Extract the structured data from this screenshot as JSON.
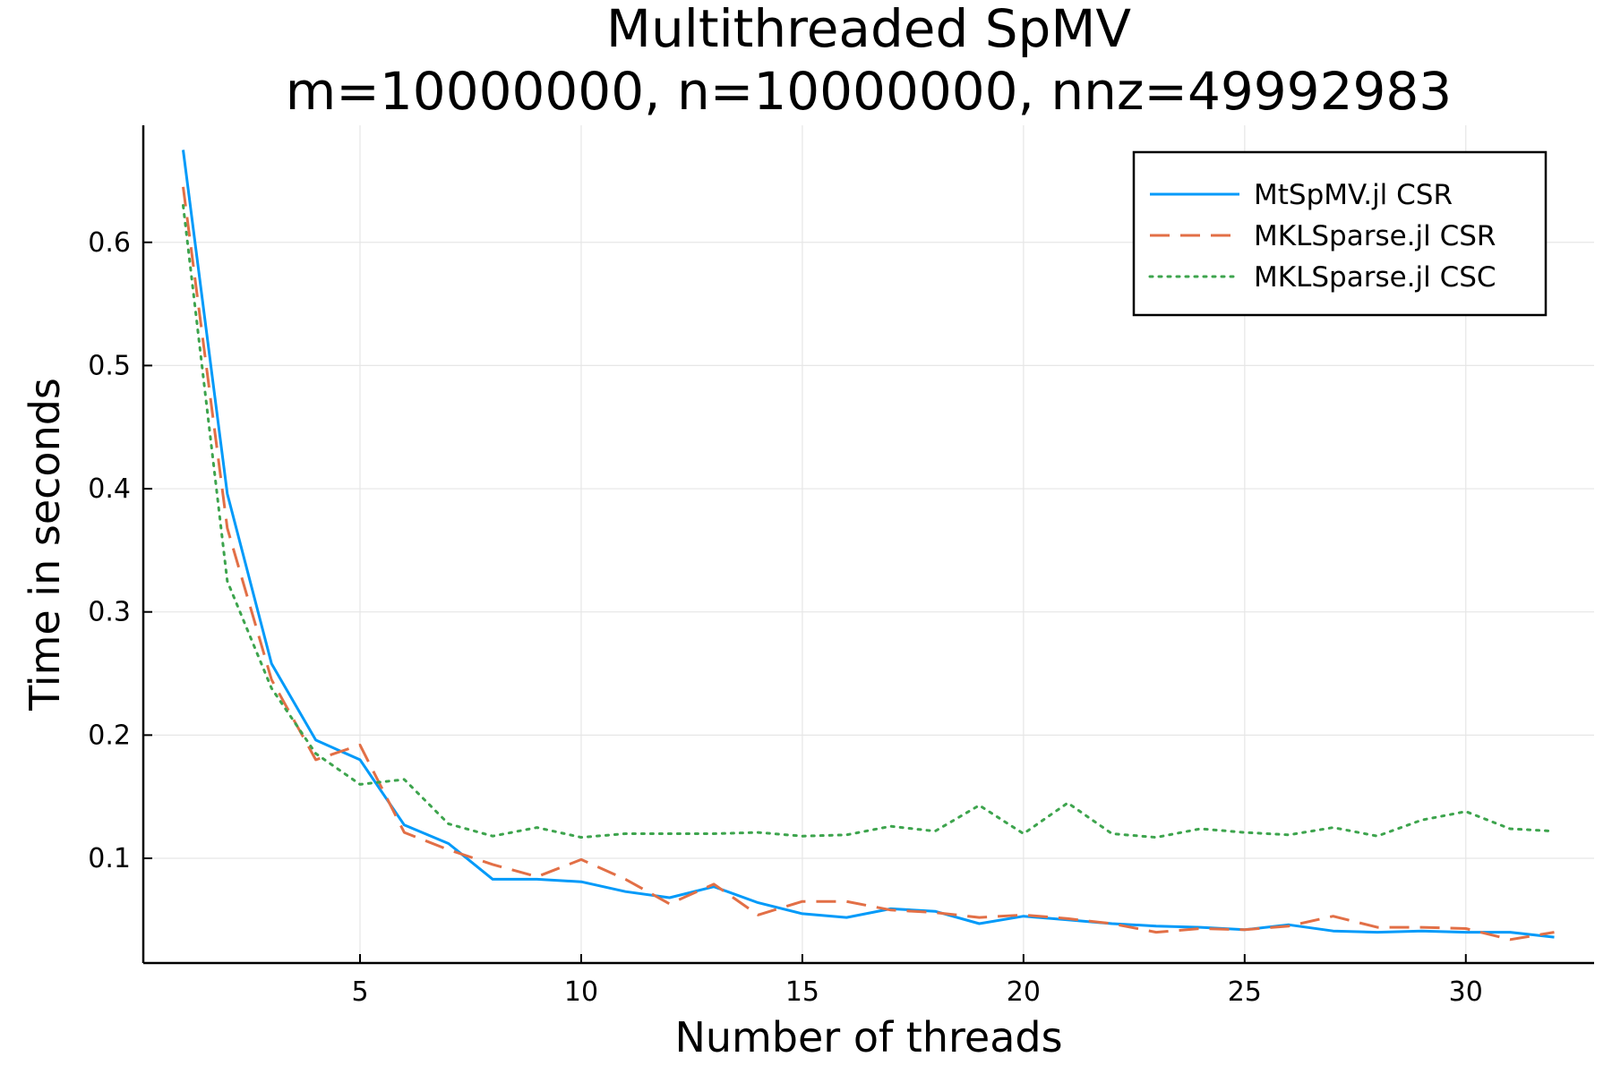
{
  "chart_data": {
    "type": "line",
    "title": "Multithreaded SpMV",
    "subtitle": "m=10000000, n=10000000, nnz=49992983",
    "xlabel": "Number of threads",
    "ylabel": "Time in seconds",
    "xlim": [
      0.1,
      32.9
    ],
    "ylim": [
      0.015,
      0.695
    ],
    "xticks": [
      5,
      10,
      15,
      20,
      25,
      30
    ],
    "yticks": [
      0.1,
      0.2,
      0.3,
      0.4,
      0.5,
      0.6
    ],
    "xtick_labels": [
      "5",
      "10",
      "15",
      "20",
      "25",
      "30"
    ],
    "ytick_labels": [
      "0.1",
      "0.2",
      "0.3",
      "0.4",
      "0.5",
      "0.6"
    ],
    "grid": true,
    "legend_position": "top-right",
    "x": [
      1,
      2,
      3,
      4,
      5,
      6,
      7,
      8,
      9,
      10,
      11,
      12,
      13,
      14,
      15,
      16,
      17,
      18,
      19,
      20,
      21,
      22,
      23,
      24,
      25,
      26,
      27,
      28,
      29,
      30,
      31,
      32
    ],
    "series": [
      {
        "name": "MtSpMV.jl CSR",
        "color": "#009af9",
        "style": "solid",
        "values": [
          0.675,
          0.396,
          0.258,
          0.196,
          0.18,
          0.127,
          0.112,
          0.083,
          0.083,
          0.081,
          0.073,
          0.068,
          0.077,
          0.064,
          0.055,
          0.052,
          0.059,
          0.057,
          0.047,
          0.053,
          0.05,
          0.047,
          0.045,
          0.044,
          0.042,
          0.046,
          0.041,
          0.04,
          0.041,
          0.04,
          0.04,
          0.036
        ]
      },
      {
        "name": "MKLSparse.jl CSR",
        "color": "#e26f46",
        "style": "dashed",
        "values": [
          0.645,
          0.368,
          0.245,
          0.18,
          0.192,
          0.121,
          0.107,
          0.095,
          0.085,
          0.099,
          0.083,
          0.063,
          0.079,
          0.054,
          0.065,
          0.065,
          0.058,
          0.056,
          0.052,
          0.054,
          0.051,
          0.047,
          0.04,
          0.043,
          0.042,
          0.045,
          0.053,
          0.044,
          0.044,
          0.043,
          0.034,
          0.04
        ]
      },
      {
        "name": "MKLSparse.jl CSC",
        "color": "#3da44d",
        "style": "dotted",
        "values": [
          0.63,
          0.325,
          0.238,
          0.185,
          0.16,
          0.164,
          0.128,
          0.118,
          0.125,
          0.117,
          0.12,
          0.12,
          0.12,
          0.121,
          0.118,
          0.119,
          0.126,
          0.122,
          0.143,
          0.12,
          0.145,
          0.12,
          0.117,
          0.124,
          0.121,
          0.119,
          0.125,
          0.118,
          0.131,
          0.138,
          0.124,
          0.122
        ]
      }
    ]
  }
}
